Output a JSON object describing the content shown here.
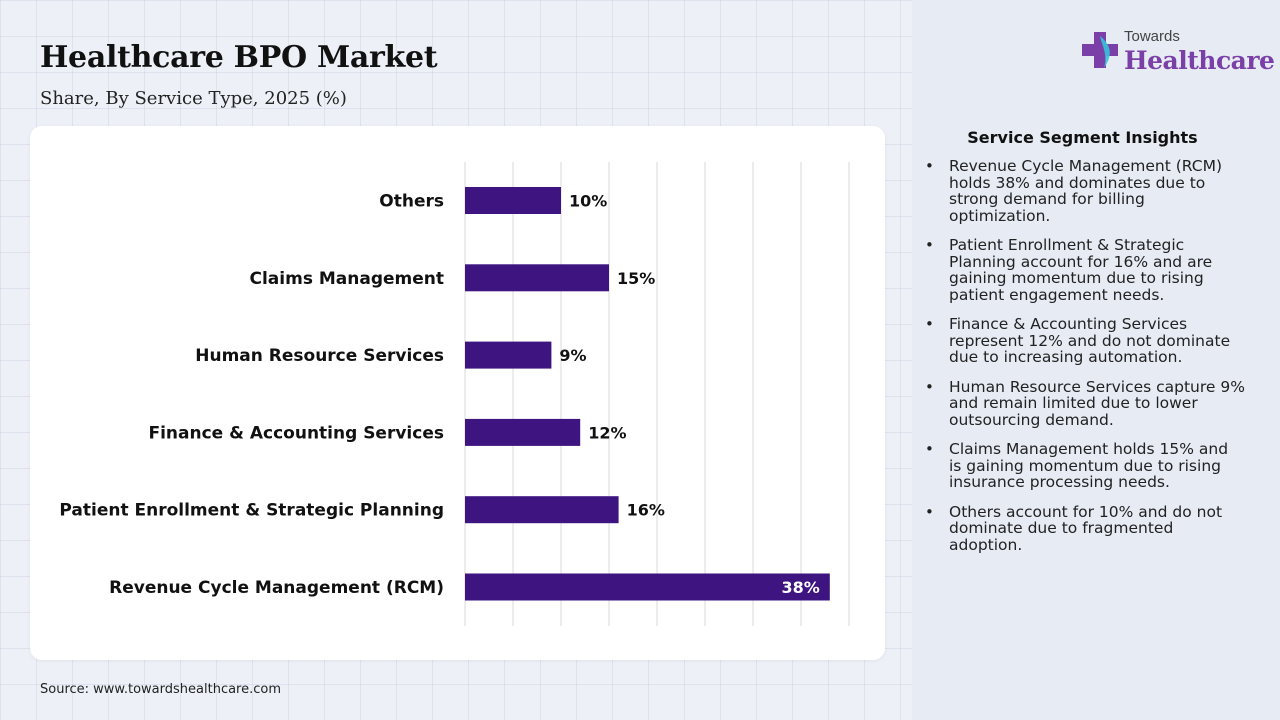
{
  "header": {
    "title": "Healthcare BPO Market",
    "subtitle": "Share, By Service Type, 2025 (%)"
  },
  "logo": {
    "top": "Towards",
    "bottom": "Healthcare"
  },
  "source": "Source: www.towardshealthcare.com",
  "insights": {
    "title": "Service Segment Insights",
    "items": [
      "Revenue Cycle Management (RCM) holds 38% and dominates due to strong demand for billing optimization.",
      "Patient Enrollment & Strategic Planning account for 16% and are gaining momentum due to rising patient engagement needs.",
      "Finance & Accounting Services represent 12% and do not dominate due to increasing automation.",
      "Human Resource Services capture 9% and remain limited due to lower outsourcing demand.",
      "Claims Management holds 15% and is gaining momentum due to rising insurance processing needs.",
      "Others account for 10% and do not dominate due to fragmented adoption."
    ]
  },
  "colors": {
    "bar": "#3d1480",
    "grid": "#d9d9d9",
    "label": "#111111",
    "logo_accent": "#7b3fa8"
  },
  "chart_data": {
    "type": "bar",
    "orientation": "horizontal",
    "title": "Healthcare BPO Market",
    "subtitle": "Share, By Service Type, 2025 (%)",
    "categories": [
      "Others",
      "Claims Management",
      "Human Resource Services",
      "Finance & Accounting Services",
      "Patient Enrollment & Strategic Planning",
      "Revenue Cycle Management (RCM)"
    ],
    "values": [
      10,
      15,
      9,
      12,
      16,
      38
    ],
    "labels": [
      "10%",
      "15%",
      "9%",
      "12%",
      "16%",
      "38%"
    ],
    "xlim": [
      0,
      40
    ],
    "grid": true,
    "legend": "none"
  }
}
